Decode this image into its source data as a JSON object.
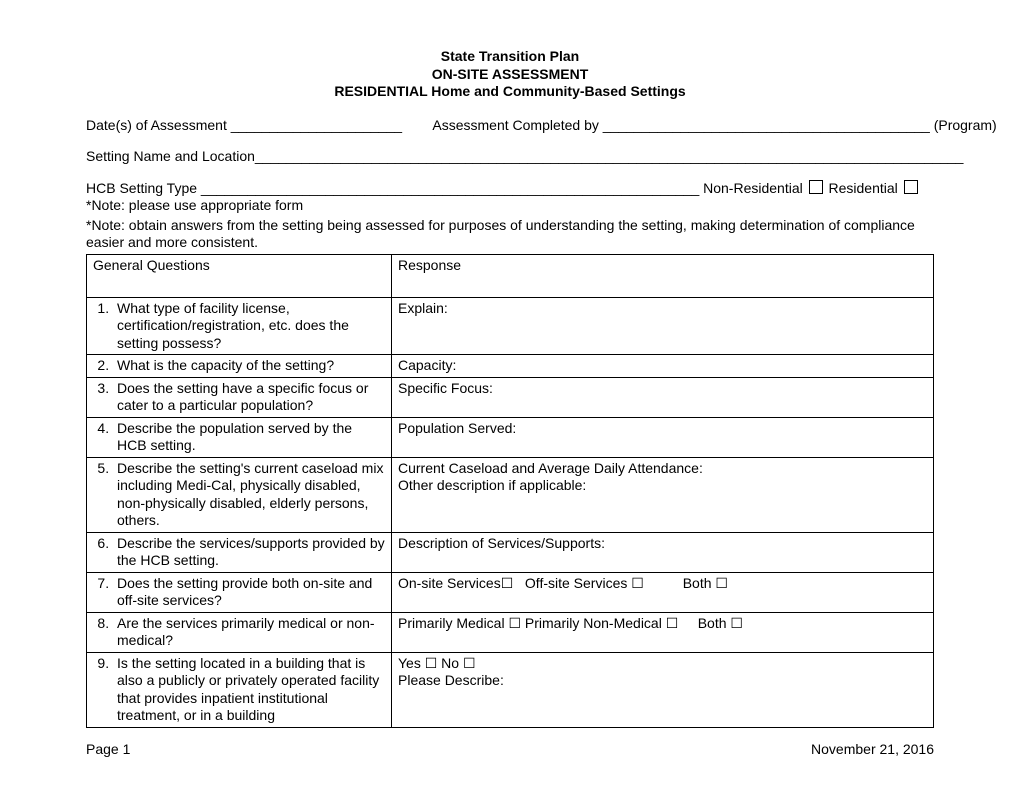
{
  "header": {
    "line1": "State Transition Plan",
    "line2": "ON-SITE ASSESSMENT",
    "line3": "RESIDENTIAL Home and Community-Based Settings"
  },
  "fields": {
    "date_label": "Date(s) of Assessment ______________________",
    "completed_label": "Assessment Completed by __________________________________________ (Program)",
    "setting_name_label": "Setting Name and Location___________________________________________________________________________________________",
    "hcb_type_label": "HCB Setting Type ________________________________________________________________",
    "non_residential_label": "Non-Residential",
    "residential_label": "Residential"
  },
  "notes": {
    "note1_prefix": "*Note:",
    "note1_text": " please use appropriate form",
    "note2_prefix": "*Note:",
    "note2_text": " obtain answers from the setting being assessed for purposes of understanding the setting, making determination of compliance easier and more consistent."
  },
  "table": {
    "header_q": "General Questions",
    "header_r": "Response",
    "rows": [
      {
        "num": 1,
        "q": "What type of facility license, certification/registration, etc. does the setting possess?",
        "r_html": "Explain:"
      },
      {
        "num": 2,
        "q": "What is the capacity of the setting?",
        "r_html": "Capacity:"
      },
      {
        "num": 3,
        "q": "Does the setting have a specific focus or cater to a particular population?",
        "r_html": "Specific Focus:"
      },
      {
        "num": 4,
        "q": "Describe the population served by the HCB setting.",
        "r_html": "Population Served:"
      },
      {
        "num": 5,
        "q": "Describe the setting's current caseload mix including Medi-Cal, physically disabled, non-physically disabled, elderly persons, others.",
        "r_html": "Current Caseload and Average Daily Attendance:<br>Other description if applicable:"
      },
      {
        "num": 6,
        "q": "Describe the services/supports provided by the HCB setting.",
        "r_html": "Description of Services/Supports:"
      },
      {
        "num": 7,
        "q": "Does the setting provide both on-site and off-site services?",
        "r_html": "On-site Services☐&nbsp;&nbsp;&nbsp;Off-site Services ☐&nbsp;&nbsp;&nbsp;&nbsp;&nbsp;&nbsp;&nbsp;&nbsp;&nbsp;&nbsp;Both ☐"
      },
      {
        "num": 8,
        "q": "Are the services primarily medical or non-medical?",
        "r_html": "Primarily Medical ☐ Primarily Non-Medical ☐&nbsp;&nbsp;&nbsp;&nbsp;&nbsp;Both ☐"
      },
      {
        "num": 9,
        "q": "Is the setting located in a building that is also a publicly or privately operated facility that provides inpatient institutional treatment, or in a building",
        "r_html": "Yes ☐ No ☐<br>Please Describe:"
      }
    ]
  },
  "footer": {
    "page_label": "Page 1",
    "date_label": "November 21, 2016"
  }
}
